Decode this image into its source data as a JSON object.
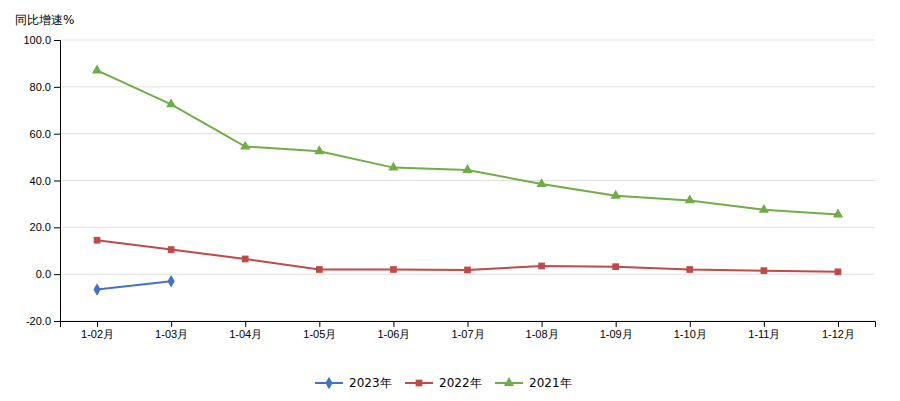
{
  "chart_data": {
    "type": "line",
    "y_label": "同比增速%",
    "categories": [
      "1-02月",
      "1-03月",
      "1-04月",
      "1-05月",
      "1-06月",
      "1-07月",
      "1-08月",
      "1-09月",
      "1-10月",
      "1-11月",
      "1-12月"
    ],
    "series": [
      {
        "name": "2023年",
        "color": "#4472C4",
        "marker": "diamond",
        "values": [
          -6.5,
          -3.0,
          null,
          null,
          null,
          null,
          null,
          null,
          null,
          null,
          null
        ]
      },
      {
        "name": "2022年",
        "color": "#BE4B48",
        "marker": "square",
        "values": [
          14.5,
          10.5,
          6.5,
          2.0,
          2.0,
          1.8,
          3.5,
          3.2,
          2.0,
          1.5,
          1.0
        ]
      },
      {
        "name": "2021年",
        "color": "#70AD47",
        "marker": "triangle",
        "values": [
          87.0,
          72.5,
          54.5,
          52.5,
          45.5,
          44.5,
          38.5,
          33.5,
          31.5,
          27.5,
          25.5
        ]
      }
    ],
    "ylim": [
      -20.0,
      100.0
    ],
    "yticks": [
      {
        "value": -20.0,
        "label": "-20.0"
      },
      {
        "value": 0.0,
        "label": "0.0"
      },
      {
        "value": 20.0,
        "label": "20.0"
      },
      {
        "value": 40.0,
        "label": "40.0"
      },
      {
        "value": 60.0,
        "label": "60.0"
      },
      {
        "value": 80.0,
        "label": "80.0"
      },
      {
        "value": 100.0,
        "label": "100.0"
      }
    ],
    "grid": true,
    "legend": "bottom"
  }
}
